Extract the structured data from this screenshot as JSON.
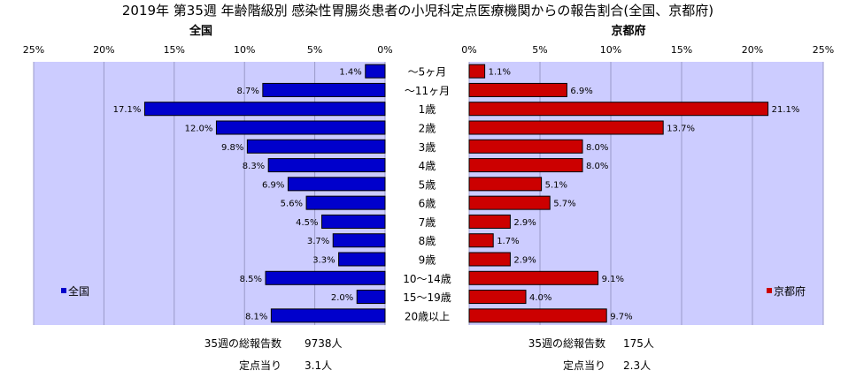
{
  "chart_data": {
    "type": "bar",
    "title": "2019年 第35週 年齢階級別 感染性胃腸炎患者の小児科定点医療機関からの報告割合(全国、京都府)",
    "categories": [
      "～5ヶ月",
      "～11ヶ月",
      "1歳",
      "2歳",
      "3歳",
      "4歳",
      "5歳",
      "6歳",
      "7歳",
      "8歳",
      "9歳",
      "10～14歳",
      "15～19歳",
      "20歳以上"
    ],
    "series": [
      {
        "name": "全国",
        "color": "#0000cc",
        "values": [
          1.4,
          8.7,
          17.1,
          12.0,
          9.8,
          8.3,
          6.9,
          5.6,
          4.5,
          3.7,
          3.3,
          8.5,
          2.0,
          8.1
        ],
        "labels": [
          "1.4%",
          "8.7%",
          "17.1%",
          "12.0%",
          "9.8%",
          "8.3%",
          "6.9%",
          "5.6%",
          "4.5%",
          "3.7%",
          "3.3%",
          "8.5%",
          "2.0%",
          "8.1%"
        ]
      },
      {
        "name": "京都府",
        "color": "#cc0000",
        "values": [
          1.1,
          6.9,
          21.1,
          13.7,
          8.0,
          8.0,
          5.1,
          5.7,
          2.9,
          1.7,
          2.9,
          9.1,
          4.0,
          9.7
        ],
        "labels": [
          "1.1%",
          "6.9%",
          "21.1%",
          "13.7%",
          "8.0%",
          "8.0%",
          "5.1%",
          "5.7%",
          "2.9%",
          "1.7%",
          "2.9%",
          "9.1%",
          "4.0%",
          "9.7%"
        ]
      }
    ],
    "xlim": [
      0,
      25
    ],
    "ticks": [
      "0%",
      "5%",
      "10%",
      "15%",
      "20%",
      "25%"
    ],
    "tick_values": [
      0,
      5,
      10,
      15,
      20,
      25
    ],
    "plot_background": "#ccccff",
    "grid": true,
    "legend_placement": "bottom-left / bottom-right"
  },
  "panels": {
    "left_title": "全国",
    "right_title": "京都府"
  },
  "legend": {
    "left_label": "全国",
    "right_label": "京都府"
  },
  "footer": {
    "left_total_label": "35週の総報告数",
    "left_total_value": "9738人",
    "left_per_label": "定点当り",
    "left_per_value": "3.1人",
    "right_total_label": "35週の総報告数",
    "right_total_value": "175人",
    "right_per_label": "定点当り",
    "right_per_value": "2.3人"
  }
}
